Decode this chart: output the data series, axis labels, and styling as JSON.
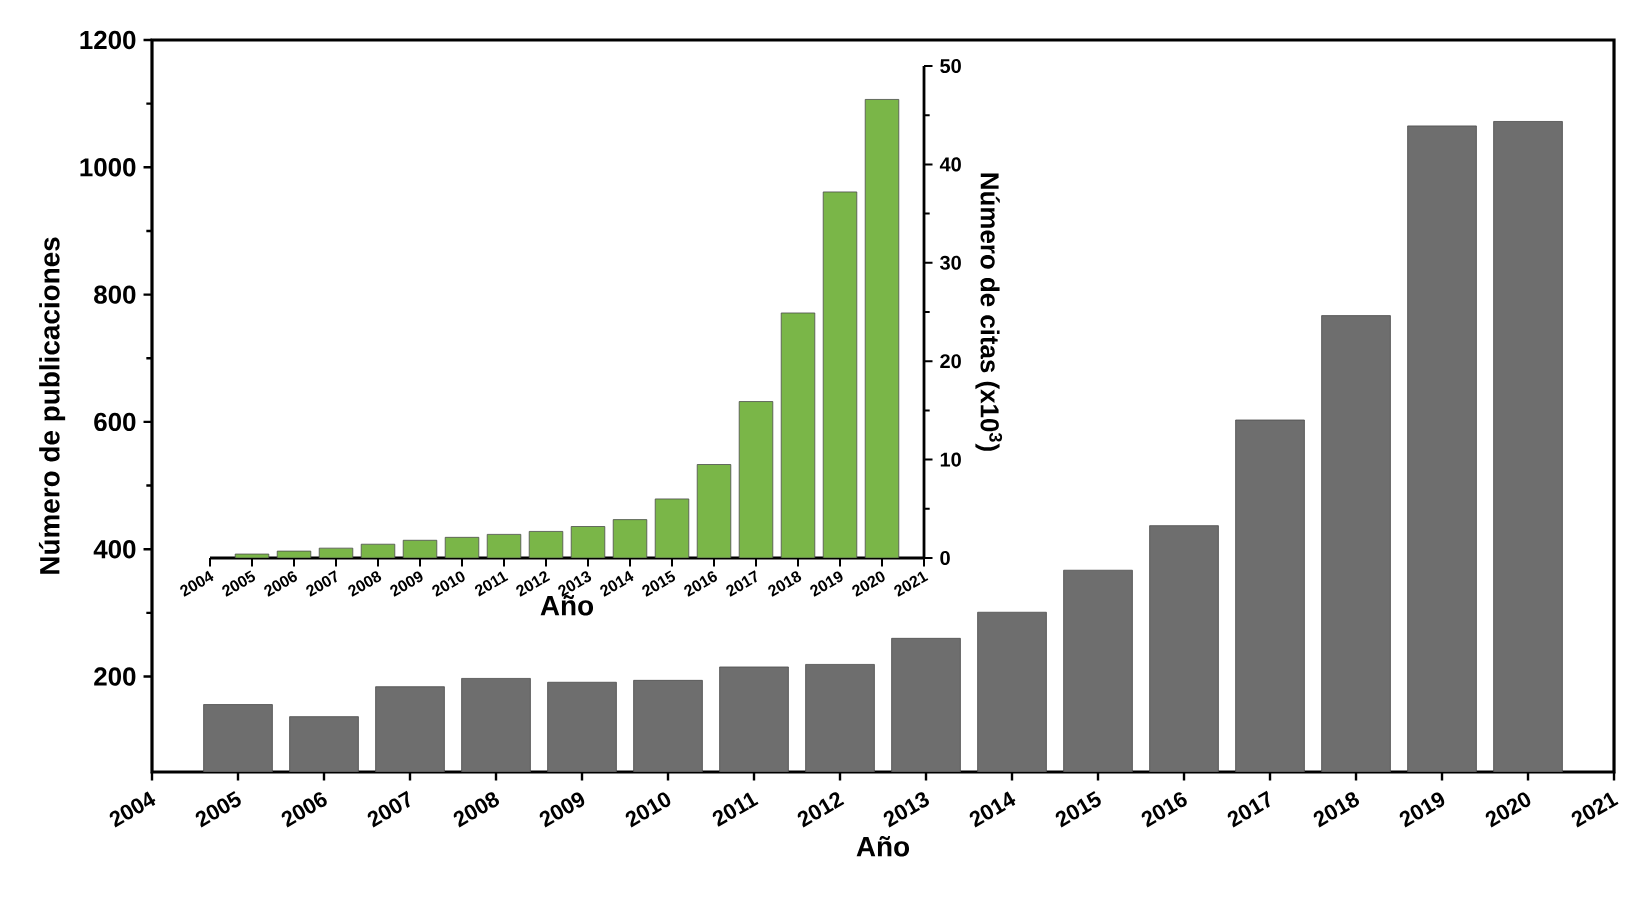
{
  "chart_data": [
    {
      "type": "bar",
      "xlabel": "Año",
      "ylabel": "Número de publicaciones",
      "color": "#6e6e6e",
      "x": [
        2005,
        2006,
        2007,
        2008,
        2009,
        2010,
        2011,
        2012,
        2013,
        2014,
        2015,
        2016,
        2017,
        2018,
        2019,
        2020
      ],
      "values": [
        156,
        137,
        184,
        197,
        191,
        194,
        215,
        219,
        260,
        301,
        367,
        437,
        603,
        767,
        1065,
        1072
      ],
      "xlim": [
        2004,
        2021
      ],
      "xticks": [
        2004,
        2005,
        2006,
        2007,
        2008,
        2009,
        2010,
        2011,
        2012,
        2013,
        2014,
        2015,
        2016,
        2017,
        2018,
        2019,
        2020,
        2021
      ],
      "ylim": [
        50,
        1200
      ],
      "yticks": [
        200,
        400,
        600,
        800,
        1000,
        1200
      ]
    },
    {
      "type": "bar",
      "xlabel": "Año",
      "ylabel": "Número de citas (x10$^{3}$)",
      "color": "#7ab648",
      "x": [
        2005,
        2006,
        2007,
        2008,
        2009,
        2010,
        2011,
        2012,
        2013,
        2014,
        2015,
        2016,
        2017,
        2018,
        2019,
        2020
      ],
      "values": [
        0.4,
        0.7,
        1.0,
        1.4,
        1.8,
        2.1,
        2.4,
        2.7,
        3.2,
        3.9,
        6.0,
        9.5,
        15.9,
        24.9,
        37.2,
        46.6
      ],
      "xlim": [
        2004,
        2021
      ],
      "xticks": [
        2004,
        2005,
        2006,
        2007,
        2008,
        2009,
        2010,
        2011,
        2012,
        2013,
        2014,
        2015,
        2016,
        2017,
        2018,
        2019,
        2020,
        2021
      ],
      "ylim": [
        0,
        50
      ],
      "yticks": [
        0,
        10,
        20,
        30,
        40,
        50
      ]
    }
  ]
}
